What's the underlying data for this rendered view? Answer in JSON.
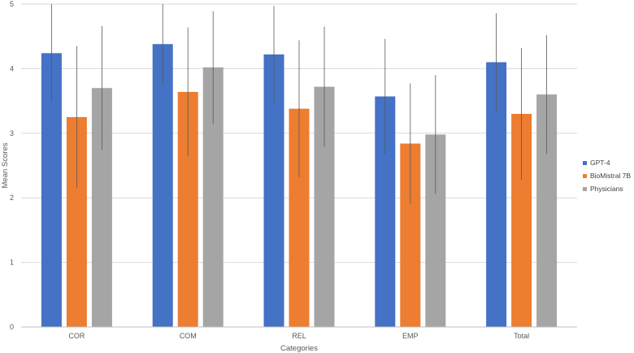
{
  "chart_data": {
    "type": "bar",
    "xlabel": "Categories",
    "ylabel": "Mean Scores",
    "ylim": [
      0,
      5
    ],
    "yticks": [
      0,
      1,
      2,
      3,
      4,
      5
    ],
    "grid": true,
    "legend_position": "right",
    "categories": [
      "COR",
      "COM",
      "REL",
      "EMP",
      "Total"
    ],
    "series": [
      {
        "name": "GPT-4",
        "color": "#4472c4",
        "values": [
          4.24,
          4.38,
          4.22,
          3.57,
          4.1
        ],
        "error": [
          0.76,
          0.64,
          0.75,
          0.89,
          0.76
        ]
      },
      {
        "name": "BioMistral 7B",
        "color": "#ed7d31",
        "values": [
          3.25,
          3.64,
          3.38,
          2.84,
          3.3
        ],
        "error": [
          1.1,
          1.0,
          1.06,
          0.93,
          1.02
        ]
      },
      {
        "name": "Physicians",
        "color": "#a5a5a5",
        "values": [
          3.7,
          4.02,
          3.72,
          2.98,
          3.6
        ],
        "error": [
          0.96,
          0.87,
          0.93,
          0.92,
          0.92
        ]
      }
    ]
  }
}
